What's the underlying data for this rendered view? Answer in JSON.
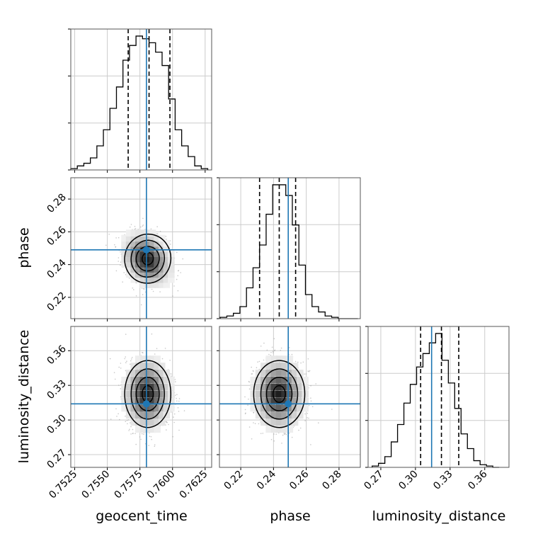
{
  "chart_data": {
    "type": "corner",
    "parameters": [
      "geocent_time",
      "phase",
      "luminosity_distance"
    ],
    "truths": {
      "geocent_time": 0.758,
      "phase": 0.249,
      "luminosity_distance": 0.314
    },
    "truth_color": "#1f77b4",
    "grid": true,
    "panels": [
      {
        "id": "geocent_time-hist",
        "type": "histogram",
        "param": "geocent_time",
        "xlim": [
          0.7522,
          0.763
        ],
        "xticks": [
          0.7525,
          0.755,
          0.7575,
          0.76,
          0.7625
        ],
        "xticklabels": [
          "0.7525",
          "0.7550",
          "0.7575",
          "0.7600",
          "0.7625"
        ],
        "bin_edges": [
          0.7522,
          0.7527,
          0.7532,
          0.7537,
          0.7542,
          0.7547,
          0.7552,
          0.7557,
          0.7562,
          0.7567,
          0.7572,
          0.7577,
          0.7582,
          0.7587,
          0.7592,
          0.7597,
          0.7602,
          0.7607,
          0.7612,
          0.7617,
          0.7622,
          0.7627
        ],
        "counts": [
          1,
          3,
          5,
          9,
          18,
          30,
          46,
          62,
          82,
          93,
          100,
          98,
          95,
          88,
          78,
          53,
          30,
          18,
          10,
          3,
          1
        ],
        "quantiles": [
          0.7566,
          0.7582,
          0.7598
        ],
        "truth": 0.758
      },
      {
        "id": "geocent_time-phase",
        "type": "density2d",
        "xparam": "geocent_time",
        "yparam": "phase",
        "xlim": [
          0.7522,
          0.763
        ],
        "ylim": [
          0.207,
          0.293
        ],
        "yticks": [
          0.22,
          0.24,
          0.26,
          0.28
        ],
        "yticklabels": [
          "0.22",
          "0.24",
          "0.26",
          "0.28"
        ],
        "mean": [
          0.7581,
          0.2436
        ],
        "std": [
          0.00085,
          0.0075
        ],
        "corr": -0.25,
        "truth": [
          0.758,
          0.249
        ]
      },
      {
        "id": "phase-hist",
        "type": "histogram",
        "param": "phase",
        "xlim": [
          0.207,
          0.293
        ],
        "xticks": [
          0.22,
          0.24,
          0.26,
          0.28
        ],
        "xticklabels": [
          "0.22",
          "0.24",
          "0.26",
          "0.28"
        ],
        "bin_edges": [
          0.2075,
          0.2115,
          0.2155,
          0.2195,
          0.2235,
          0.2275,
          0.2315,
          0.2355,
          0.2395,
          0.2435,
          0.2475,
          0.2515,
          0.2555,
          0.2595,
          0.2635,
          0.2675,
          0.2715,
          0.2755,
          0.2795,
          0.2835,
          0.2875,
          0.2915
        ],
        "counts": [
          1,
          2,
          4,
          9,
          23,
          38,
          55,
          78,
          100,
          100,
          92,
          70,
          40,
          18,
          9,
          5,
          2,
          1,
          0,
          0,
          0
        ],
        "quantiles": [
          0.2315,
          0.2435,
          0.2535
        ],
        "truth": 0.249
      },
      {
        "id": "geocent_time-luminosity_distance",
        "type": "density2d",
        "xparam": "geocent_time",
        "yparam": "luminosity_distance",
        "xlim": [
          0.7522,
          0.763
        ],
        "ylim": [
          0.259,
          0.381
        ],
        "yticks": [
          0.27,
          0.3,
          0.33,
          0.36
        ],
        "yticklabels": [
          "0.27",
          "0.30",
          "0.33",
          "0.36"
        ],
        "mean": [
          0.7581,
          0.3225
        ],
        "std": [
          0.00085,
          0.0145
        ],
        "corr": 0.0,
        "truth": [
          0.758,
          0.314
        ]
      },
      {
        "id": "phase-luminosity_distance",
        "type": "density2d",
        "xparam": "phase",
        "yparam": "luminosity_distance",
        "xlim": [
          0.207,
          0.293
        ],
        "ylim": [
          0.259,
          0.381
        ],
        "mean": [
          0.2435,
          0.3225
        ],
        "std": [
          0.0075,
          0.0145
        ],
        "corr": 0.0,
        "truth": [
          0.249,
          0.314
        ]
      },
      {
        "id": "luminosity_distance-hist",
        "type": "histogram",
        "param": "luminosity_distance",
        "xlim": [
          0.259,
          0.381
        ],
        "xticks": [
          0.27,
          0.3,
          0.33,
          0.36
        ],
        "xticklabels": [
          "0.27",
          "0.30",
          "0.33",
          "0.36"
        ],
        "bin_edges": [
          0.2625,
          0.268,
          0.2735,
          0.279,
          0.2845,
          0.29,
          0.2955,
          0.301,
          0.3065,
          0.312,
          0.3175,
          0.323,
          0.3285,
          0.334,
          0.3395,
          0.345,
          0.3505,
          0.356,
          0.3615,
          0.367,
          0.3725
        ],
        "counts": [
          1,
          3,
          8,
          19,
          32,
          48,
          62,
          75,
          85,
          93,
          100,
          80,
          63,
          44,
          25,
          14,
          5,
          2,
          1,
          0
        ],
        "quantiles": [
          0.3045,
          0.3225,
          0.3375
        ],
        "truth": 0.314
      }
    ],
    "xlabels": [
      "geocent_time",
      "phase",
      "luminosity_distance"
    ],
    "ylabels": [
      "phase",
      "luminosity_distance"
    ]
  }
}
